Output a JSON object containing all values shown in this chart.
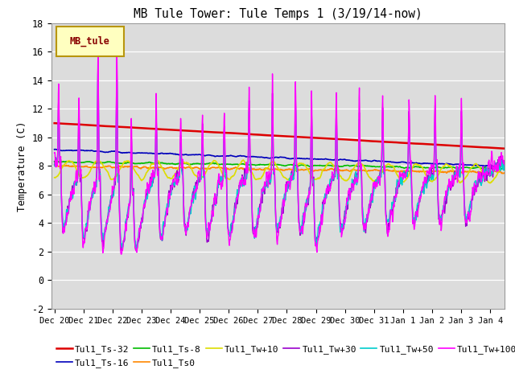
{
  "title": "MB Tule Tower: Tule Temps 1 (3/19/14-now)",
  "ylabel": "Temperature (C)",
  "ylim": [
    -2,
    18
  ],
  "yticks": [
    -2,
    0,
    2,
    4,
    6,
    8,
    10,
    12,
    14,
    16,
    18
  ],
  "xtick_labels": [
    "Dec 20",
    "Dec 21",
    "Dec 22",
    "Dec 23",
    "Dec 24",
    "Dec 25",
    "Dec 26",
    "Dec 27",
    "Dec 28",
    "Dec 29",
    "Dec 30",
    "Dec 31",
    "Jan 1",
    "Jan 2",
    "Jan 3",
    "Jan 4"
  ],
  "background_color": "#dcdcdc",
  "fig_background": "#ffffff",
  "legend_box_color": "#ffffc0",
  "legend_box_edge": "#b8960c",
  "legend_label": "MB_tule",
  "series_colors": {
    "Tul1_Ts-32": "#dd0000",
    "Tul1_Ts-16": "#0000bb",
    "Tul1_Ts-8": "#00bb00",
    "Tul1_Ts0": "#ff8800",
    "Tul1_Tw+10": "#dddd00",
    "Tul1_Tw+30": "#9900cc",
    "Tul1_Tw+50": "#00cccc",
    "Tul1_Tw+100": "#ff00ff"
  },
  "font_family": "monospace"
}
